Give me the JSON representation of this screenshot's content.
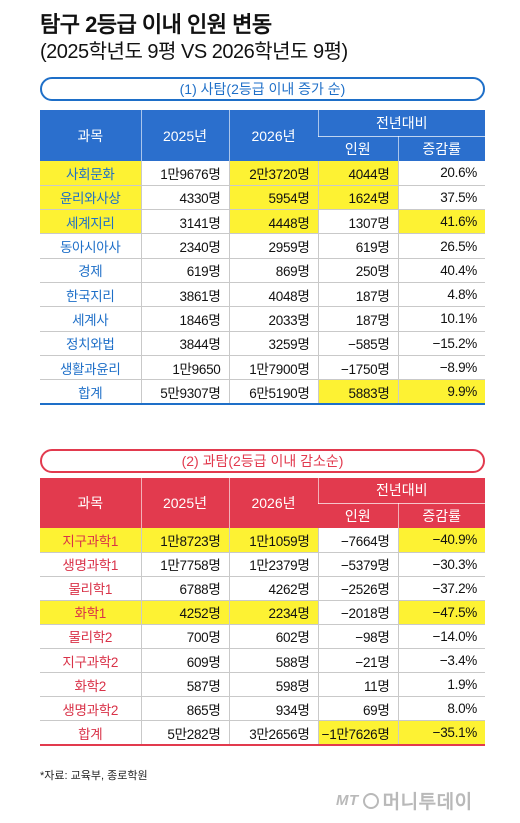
{
  "title": "탐구 2등급 이내 인원 변동",
  "subtitle": "(2025학년도 9평 VS 2026학년도 9평)",
  "section1": {
    "label": "(1) 사탐(2등급 이내 증가 순)",
    "headers": {
      "subject": "과목",
      "y2025": "2025년",
      "y2026": "2026년",
      "yoy": "전년대비",
      "people": "인원",
      "rate": "증감률"
    },
    "rows": [
      {
        "subject": "사회문화",
        "y2025": "1만9676명",
        "y2026": "2만3720명",
        "people": "4044명",
        "rate": "20.6%",
        "hl": [
          0,
          2,
          3
        ]
      },
      {
        "subject": "윤리와사상",
        "y2025": "4330명",
        "y2026": "5954명",
        "people": "1624명",
        "rate": "37.5%",
        "hl": [
          0,
          2,
          3
        ]
      },
      {
        "subject": "세계지리",
        "y2025": "3141명",
        "y2026": "4448명",
        "people": "1307명",
        "rate": "41.6%",
        "hl": [
          0,
          2,
          4
        ]
      },
      {
        "subject": "동아시아사",
        "y2025": "2340명",
        "y2026": "2959명",
        "people": "619명",
        "rate": "26.5%",
        "hl": []
      },
      {
        "subject": "경제",
        "y2025": "619명",
        "y2026": "869명",
        "people": "250명",
        "rate": "40.4%",
        "hl": []
      },
      {
        "subject": "한국지리",
        "y2025": "3861명",
        "y2026": "4048명",
        "people": "187명",
        "rate": "4.8%",
        "hl": []
      },
      {
        "subject": "세계사",
        "y2025": "1846명",
        "y2026": "2033명",
        "people": "187명",
        "rate": "10.1%",
        "hl": []
      },
      {
        "subject": "정치와법",
        "y2025": "3844명",
        "y2026": "3259명",
        "people": "−585명",
        "rate": "−15.2%",
        "hl": []
      },
      {
        "subject": "생활과윤리",
        "y2025": "1만9650",
        "y2026": "1만7900명",
        "people": "−1750명",
        "rate": "−8.9%",
        "hl": []
      }
    ],
    "total": {
      "subject": "합계",
      "y2025": "5만9307명",
      "y2026": "6만5190명",
      "people": "5883명",
      "rate": "9.9%",
      "hl": [
        3,
        4
      ]
    }
  },
  "section2": {
    "label": "(2) 과탐(2등급 이내 감소순)",
    "headers": {
      "subject": "과목",
      "y2025": "2025년",
      "y2026": "2026년",
      "yoy": "전년대비",
      "people": "인원",
      "rate": "증감률"
    },
    "rows": [
      {
        "subject": "지구과학1",
        "y2025": "1만8723명",
        "y2026": "1만1059명",
        "people": "−7664명",
        "rate": "−40.9%",
        "hl": [
          0,
          1,
          2,
          4
        ]
      },
      {
        "subject": "생명과학1",
        "y2025": "1만7758명",
        "y2026": "1만2379명",
        "people": "−5379명",
        "rate": "−30.3%",
        "hl": []
      },
      {
        "subject": "물리학1",
        "y2025": "6788명",
        "y2026": "4262명",
        "people": "−2526명",
        "rate": "−37.2%",
        "hl": []
      },
      {
        "subject": "화학1",
        "y2025": "4252명",
        "y2026": "2234명",
        "people": "−2018명",
        "rate": "−47.5%",
        "hl": [
          0,
          1,
          2,
          4
        ]
      },
      {
        "subject": "물리학2",
        "y2025": "700명",
        "y2026": "602명",
        "people": "−98명",
        "rate": "−14.0%",
        "hl": []
      },
      {
        "subject": "지구과학2",
        "y2025": "609명",
        "y2026": "588명",
        "people": "−21명",
        "rate": "−3.4%",
        "hl": []
      },
      {
        "subject": "화학2",
        "y2025": "587명",
        "y2026": "598명",
        "people": "11명",
        "rate": "1.9%",
        "hl": []
      },
      {
        "subject": "생명과학2",
        "y2025": "865명",
        "y2026": "934명",
        "people": "69명",
        "rate": "8.0%",
        "hl": []
      }
    ],
    "total": {
      "subject": "합계",
      "y2025": "5만282명",
      "y2026": "3만2656명",
      "people": "−1만7626명",
      "rate": "−35.1%",
      "hl": [
        3,
        4
      ]
    }
  },
  "source": "*자료: 교육부, 종로학원",
  "logo": {
    "prefix": "MT",
    "text": "머니투데이"
  },
  "colors": {
    "sociology_accent": "#1e6fc8",
    "science_accent": "#e23a4e",
    "highlight": "#fdf233"
  }
}
